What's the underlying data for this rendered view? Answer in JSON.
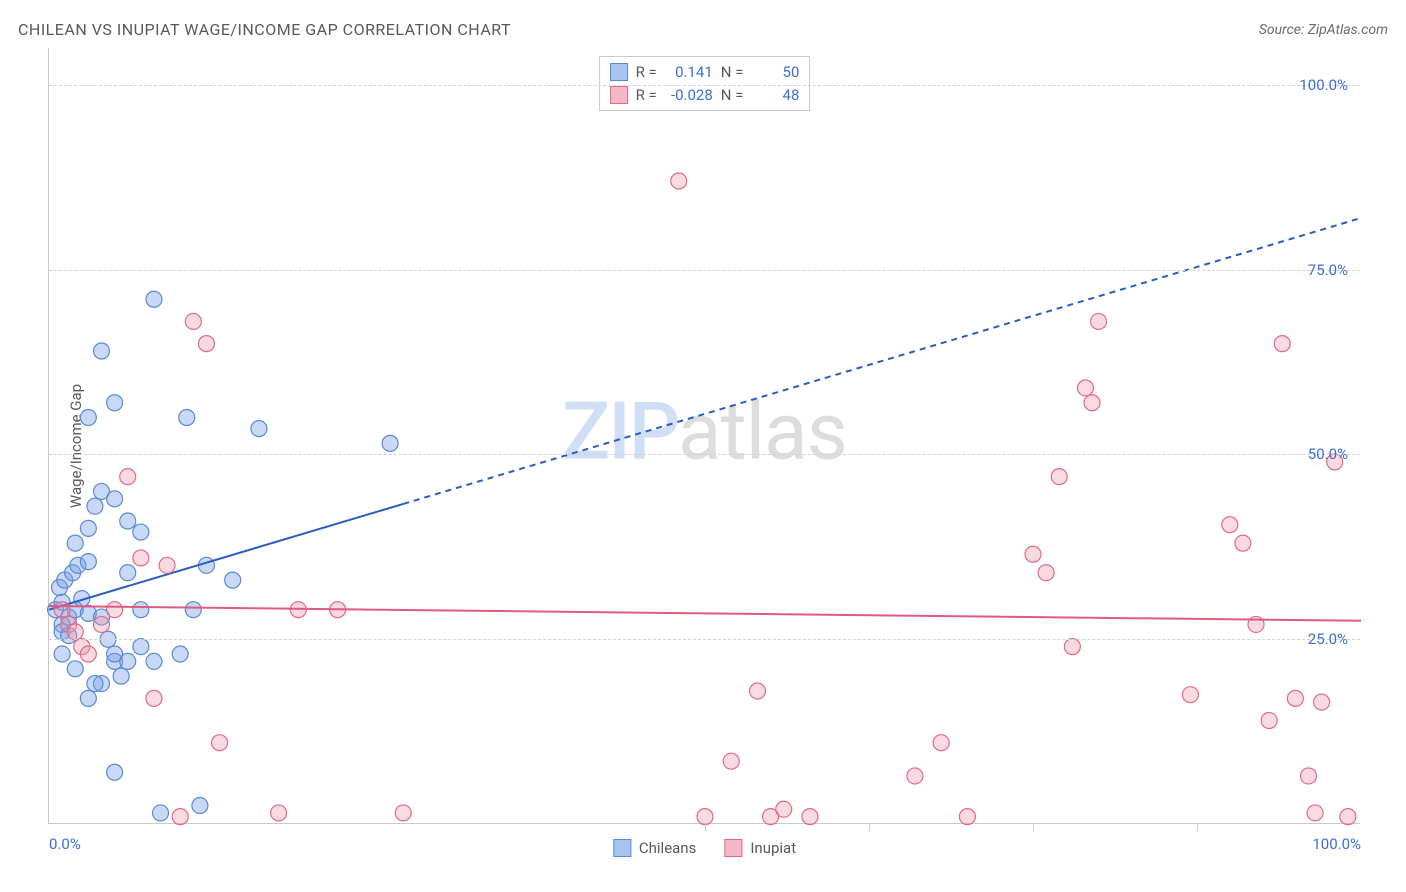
{
  "title": "CHILEAN VS INUPIAT WAGE/INCOME GAP CORRELATION CHART",
  "source_label": "Source: ",
  "source_value": "ZipAtlas.com",
  "y_axis_label": "Wage/Income Gap",
  "watermark_zip": "ZIP",
  "watermark_atlas": "atlas",
  "chart": {
    "type": "scatter",
    "xlim": [
      0,
      100
    ],
    "ylim": [
      0,
      105
    ],
    "y_ticks": [
      25,
      50,
      75,
      100
    ],
    "y_tick_labels": [
      "25.0%",
      "50.0%",
      "75.0%",
      "100.0%"
    ],
    "x_ticks": [
      0,
      25,
      50,
      75,
      100
    ],
    "x_tick_labels": [
      "0.0%",
      "",
      "",
      "",
      "100.0%"
    ],
    "x_minor_ticks": [
      50,
      62.5,
      75,
      87.5
    ],
    "grid_color": "#d3d3d3",
    "axis_color": "#c9c9c9",
    "tick_label_color": "#3b6fd6",
    "marker_radius": 8,
    "marker_stroke_width": 1.2,
    "marker_opacity": 0.55,
    "series": [
      {
        "name": "Chileans",
        "color_fill": "rgba(120,160,230,0.4)",
        "color_stroke": "#5a8ad6",
        "swatch_fill": "#a9c4ee",
        "swatch_stroke": "#5a8ad6",
        "R": "0.141",
        "N": "50",
        "trend": {
          "x1": 0,
          "y1": 29,
          "x2": 100,
          "y2": 82,
          "solid_until_x": 27,
          "color": "#2a5cc4",
          "width": 2
        },
        "points": [
          [
            0.5,
            29
          ],
          [
            1,
            30
          ],
          [
            1.5,
            28
          ],
          [
            1,
            27
          ],
          [
            1,
            26
          ],
          [
            1.5,
            25.5
          ],
          [
            2,
            29
          ],
          [
            2.5,
            30.5
          ],
          [
            3,
            28.5
          ],
          [
            0.8,
            32
          ],
          [
            1.2,
            33
          ],
          [
            1.8,
            34
          ],
          [
            2.2,
            35
          ],
          [
            3,
            35.5
          ],
          [
            4,
            28
          ],
          [
            4.5,
            25
          ],
          [
            5,
            22
          ],
          [
            5.5,
            20
          ],
          [
            3,
            17
          ],
          [
            4,
            19
          ],
          [
            2,
            38
          ],
          [
            3,
            40
          ],
          [
            3.5,
            43
          ],
          [
            4,
            45
          ],
          [
            5,
            44
          ],
          [
            6,
            41
          ],
          [
            7,
            39.5
          ],
          [
            6,
            34
          ],
          [
            7,
            29
          ],
          [
            8,
            22
          ],
          [
            10,
            23
          ],
          [
            11,
            29
          ],
          [
            11.5,
            2.5
          ],
          [
            5,
            7
          ],
          [
            6,
            22
          ],
          [
            7,
            24
          ],
          [
            3,
            55
          ],
          [
            5,
            57
          ],
          [
            8,
            71
          ],
          [
            10.5,
            55
          ],
          [
            16,
            53.5
          ],
          [
            12,
            35
          ],
          [
            14,
            33
          ],
          [
            26,
            51.5
          ],
          [
            4,
            64
          ],
          [
            5,
            23
          ],
          [
            1,
            23
          ],
          [
            2,
            21
          ],
          [
            3.5,
            19
          ],
          [
            8.5,
            1.5
          ]
        ]
      },
      {
        "name": "Inupiat",
        "color_fill": "rgba(240,150,170,0.35)",
        "color_stroke": "#e06a8a",
        "swatch_fill": "#f3b9c8",
        "swatch_stroke": "#e06a8a",
        "R": "-0.028",
        "N": "48",
        "trend": {
          "x1": 0,
          "y1": 29.5,
          "x2": 100,
          "y2": 27.5,
          "solid_until_x": 100,
          "color": "#e05a80",
          "width": 2
        },
        "points": [
          [
            1,
            29
          ],
          [
            1.5,
            27
          ],
          [
            2,
            26
          ],
          [
            2.5,
            24
          ],
          [
            3,
            23
          ],
          [
            4,
            27
          ],
          [
            5,
            29
          ],
          [
            6,
            47
          ],
          [
            7,
            36
          ],
          [
            8,
            17
          ],
          [
            9,
            35
          ],
          [
            10,
            1
          ],
          [
            11,
            68
          ],
          [
            12,
            65
          ],
          [
            13,
            11
          ],
          [
            17.5,
            1.5
          ],
          [
            19,
            29
          ],
          [
            22,
            29
          ],
          [
            27,
            1.5
          ],
          [
            48,
            87
          ],
          [
            50,
            1
          ],
          [
            52,
            8.5
          ],
          [
            54,
            18
          ],
          [
            55,
            1
          ],
          [
            56,
            2
          ],
          [
            58,
            1
          ],
          [
            66,
            6.5
          ],
          [
            68,
            11
          ],
          [
            70,
            1
          ],
          [
            75,
            36.5
          ],
          [
            76,
            34
          ],
          [
            77,
            47
          ],
          [
            78,
            24
          ],
          [
            79,
            59
          ],
          [
            79.5,
            57
          ],
          [
            80,
            68
          ],
          [
            87,
            17.5
          ],
          [
            90,
            40.5
          ],
          [
            91,
            38
          ],
          [
            92,
            27
          ],
          [
            93,
            14
          ],
          [
            94,
            65
          ],
          [
            95,
            17
          ],
          [
            96,
            6.5
          ],
          [
            96.5,
            1.5
          ],
          [
            97,
            16.5
          ],
          [
            98,
            49
          ],
          [
            99,
            1
          ]
        ]
      }
    ]
  },
  "stats_labels": {
    "R": "R =",
    "N": "N ="
  },
  "legend_labels": [
    "Chileans",
    "Inupiat"
  ]
}
